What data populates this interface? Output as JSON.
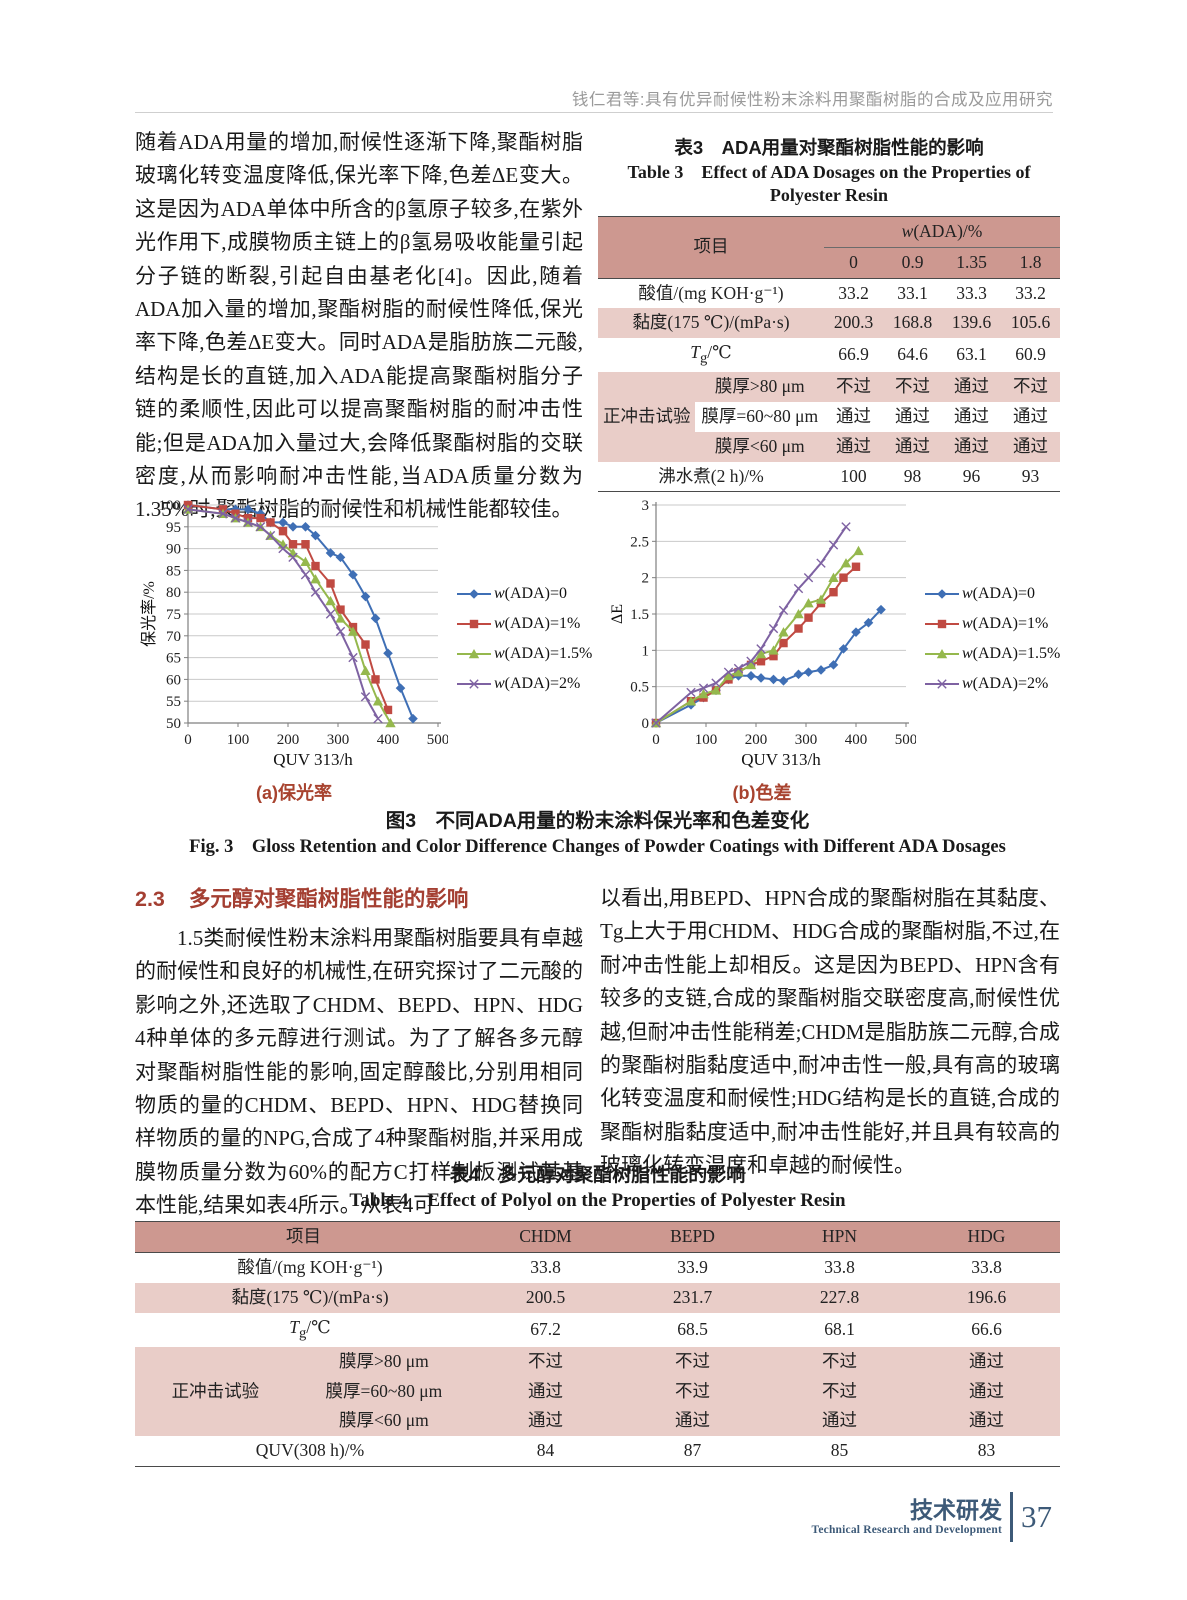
{
  "page": {
    "running_head": "钱仁君等:具有优异耐候性粉末涂料用聚酯树脂的合成及应用研究"
  },
  "intro": {
    "text": "随着ADA用量的增加,耐候性逐渐下降,聚酯树脂玻璃化转变温度降低,保光率下降,色差ΔE变大。这是因为ADA单体中所含的β氢原子较多,在紫外光作用下,成膜物质主链上的β氢易吸收能量引起分子链的断裂,引起自由基老化[4]。因此,随着ADA加入量的增加,聚酯树脂的耐候性降低,保光率下降,色差ΔE变大。同时ADA是脂肪族二元酸,结构是长的直链,加入ADA能提高聚酯树脂分子链的柔顺性,因此可以提高聚酯树脂的耐冲击性能;但是ADA加入量过大,会降低聚酯树脂的交联密度,从而影响耐冲击性能,当ADA质量分数为1.35%时,聚酯树脂的耐候性和机械性能都较佳。"
  },
  "table3": {
    "title_cn": "表3　ADA用量对聚酯树脂性能的影响",
    "title_en1": "Table 3　Effect of ADA Dosages on the Properties of",
    "title_en2": "Polyester Resin",
    "header": {
      "item": "项目",
      "group_w": "w",
      "group_rest": "(ADA)/%",
      "cols": [
        "0",
        "0.9",
        "1.35",
        "1.8"
      ]
    },
    "rows": {
      "acid": {
        "label": "酸值/(mg KOH·g⁻¹)",
        "values": [
          "33.2",
          "33.1",
          "33.3",
          "33.2"
        ]
      },
      "viscosity": {
        "label": "黏度(175 ℃)/(mPa·s)",
        "values": [
          "200.3",
          "168.8",
          "139.6",
          "105.6"
        ]
      },
      "tg": {
        "label_t": "T",
        "label_sub": "g",
        "label_rest": "/℃",
        "values": [
          "66.9",
          "64.6",
          "63.1",
          "60.9"
        ]
      },
      "impact_title": "正冲击试验",
      "impact": [
        {
          "label": "膜厚>80 μm",
          "values": [
            "不过",
            "不过",
            "通过",
            "不过"
          ]
        },
        {
          "label": "膜厚=60~80 μm",
          "values": [
            "通过",
            "通过",
            "通过",
            "通过"
          ]
        },
        {
          "label": "膜厚<60 μm",
          "values": [
            "通过",
            "通过",
            "通过",
            "通过"
          ]
        }
      ],
      "boil": {
        "label": "沸水煮(2 h)/%",
        "values": [
          "100",
          "98",
          "96",
          "93"
        ]
      }
    }
  },
  "chart_data": [
    {
      "type": "line",
      "title": "(a)保光率",
      "xlabel": "QUV 313/h",
      "ylabel": "保光率/%",
      "xlim": [
        0,
        500
      ],
      "ylim": [
        50,
        100
      ],
      "xticks": [
        "0",
        "100",
        "200",
        "300",
        "400",
        "500"
      ],
      "yticks": [
        "50",
        "55",
        "60",
        "65",
        "70",
        "75",
        "80",
        "85",
        "90",
        "95",
        "100"
      ],
      "grid": "horizontal",
      "legend_position": "right",
      "series": [
        {
          "name": "w(ADA)=0",
          "color": "#3f6fb5",
          "marker": "diamond",
          "x": [
            0,
            70,
            95,
            120,
            145,
            165,
            190,
            210,
            235,
            255,
            285,
            305,
            330,
            355,
            375,
            400,
            425,
            450
          ],
          "y": [
            100,
            99,
            99,
            99,
            98,
            96,
            96,
            95,
            95,
            93,
            89,
            88,
            84,
            79,
            74,
            66,
            58,
            51
          ]
        },
        {
          "name": "w(ADA)=1%",
          "color": "#c04a42",
          "marker": "square",
          "x": [
            0,
            70,
            95,
            120,
            145,
            165,
            190,
            210,
            235,
            255,
            285,
            305,
            330,
            355,
            375,
            400
          ],
          "y": [
            100,
            99,
            98,
            97,
            97,
            96,
            94,
            91,
            91,
            86,
            82,
            76,
            72,
            68,
            60,
            53
          ]
        },
        {
          "name": "w(ADA)=1.5%",
          "color": "#95b84d",
          "marker": "triangle",
          "x": [
            0,
            70,
            95,
            120,
            145,
            165,
            190,
            210,
            235,
            255,
            285,
            305,
            330,
            355,
            380,
            405
          ],
          "y": [
            99,
            98,
            97,
            96,
            95,
            93,
            91,
            89,
            87,
            83,
            78,
            74,
            71,
            62,
            55,
            50
          ]
        },
        {
          "name": "w(ADA)=2%",
          "color": "#7e62a2",
          "marker": "x",
          "x": [
            0,
            70,
            95,
            120,
            145,
            165,
            190,
            210,
            235,
            255,
            285,
            305,
            330,
            355,
            380
          ],
          "y": [
            99,
            98,
            97,
            96,
            95,
            93,
            90,
            88,
            84,
            80,
            75,
            71,
            65,
            56,
            51
          ]
        }
      ]
    },
    {
      "type": "line",
      "title": "(b)色差",
      "xlabel": "QUV 313/h",
      "ylabel": "ΔE",
      "xlim": [
        0,
        500
      ],
      "ylim": [
        0,
        3
      ],
      "xticks": [
        "0",
        "100",
        "200",
        "300",
        "400",
        "500"
      ],
      "yticks": [
        "0",
        "0.5",
        "1",
        "1.5",
        "2",
        "2.5",
        "3"
      ],
      "grid": "horizontal",
      "legend_position": "right",
      "series": [
        {
          "name": "w(ADA)=0",
          "color": "#3f6fb5",
          "marker": "diamond",
          "x": [
            0,
            70,
            95,
            120,
            145,
            165,
            190,
            210,
            235,
            255,
            285,
            305,
            330,
            355,
            375,
            400,
            425,
            450
          ],
          "y": [
            0,
            0.25,
            0.35,
            0.45,
            0.6,
            0.65,
            0.65,
            0.62,
            0.6,
            0.58,
            0.67,
            0.7,
            0.73,
            0.8,
            1.02,
            1.25,
            1.38,
            1.56
          ]
        },
        {
          "name": "w(ADA)=1%",
          "color": "#c04a42",
          "marker": "square",
          "x": [
            0,
            70,
            95,
            120,
            145,
            165,
            190,
            210,
            235,
            255,
            285,
            305,
            330,
            355,
            375,
            400
          ],
          "y": [
            0,
            0.3,
            0.35,
            0.45,
            0.6,
            0.7,
            0.8,
            0.85,
            0.92,
            1.1,
            1.3,
            1.45,
            1.65,
            1.8,
            2.0,
            2.15
          ]
        },
        {
          "name": "w(ADA)=1.5%",
          "color": "#95b84d",
          "marker": "triangle",
          "x": [
            0,
            70,
            95,
            120,
            145,
            165,
            190,
            210,
            235,
            255,
            285,
            305,
            330,
            355,
            380,
            405
          ],
          "y": [
            0,
            0.3,
            0.4,
            0.45,
            0.65,
            0.7,
            0.8,
            0.95,
            1.0,
            1.25,
            1.5,
            1.65,
            1.7,
            2.0,
            2.2,
            2.37
          ]
        },
        {
          "name": "w(ADA)=2%",
          "color": "#7e62a2",
          "marker": "x",
          "x": [
            0,
            70,
            95,
            120,
            145,
            165,
            190,
            210,
            235,
            255,
            285,
            305,
            330,
            355,
            380
          ],
          "y": [
            0,
            0.42,
            0.48,
            0.55,
            0.7,
            0.75,
            0.85,
            1.02,
            1.3,
            1.55,
            1.85,
            2.0,
            2.2,
            2.45,
            2.7
          ]
        }
      ]
    }
  ],
  "figure3": {
    "caption_a": "(a)保光率",
    "caption_b": "(b)色差",
    "caption_cn": "图3　不同ADA用量的粉末涂料保光率和色差变化",
    "caption_en": "Fig. 3　Gloss Retention and Color Difference Changes of Powder Coatings with Different ADA Dosages"
  },
  "section23": {
    "number": "2.3",
    "title": "多元醇对聚酯树脂性能的影响",
    "left": "1.5类耐候性粉末涂料用聚酯树脂要具有卓越的耐候性和良好的机械性,在研究探讨了二元酸的影响之外,还选取了CHDM、BEPD、HPN、HDG 4种单体的多元醇进行测试。为了了解各多元醇对聚酯树脂性能的影响,固定醇酸比,分别用相同物质的量的CHDM、BEPD、HPN、HDG替换同样物质的量的NPG,合成了4种聚酯树脂,并采用成膜物质量分数为60%的配方C打样制板测试其基本性能,结果如表4所示。从表4可",
    "right": "以看出,用BEPD、HPN合成的聚酯树脂在其黏度、Tg上大于用CHDM、HDG合成的聚酯树脂,不过,在耐冲击性能上却相反。这是因为BEPD、HPN含有较多的支链,合成的聚酯树脂交联密度高,耐候性优越,但耐冲击性能稍差;CHDM是脂肪族二元醇,合成的聚酯树脂黏度适中,耐冲击性一般,具有高的玻璃化转变温度和耐候性;HDG结构是长的直链,合成的聚酯树脂黏度适中,耐冲击性能好,并且具有较高的玻璃化转变温度和卓越的耐候性。"
  },
  "table4": {
    "title_cn": "表4　多元醇对聚酯树脂性能的影响",
    "title_en": "Table 4　Effect of Polyol on the Properties of Polyester Resin",
    "header": {
      "item": "项目",
      "cols": [
        "CHDM",
        "BEPD",
        "HPN",
        "HDG"
      ]
    },
    "rows": {
      "acid": {
        "label": "酸值/(mg KOH·g⁻¹)",
        "values": [
          "33.8",
          "33.9",
          "33.8",
          "33.8"
        ]
      },
      "viscosity": {
        "label": "黏度(175 ℃)/(mPa·s)",
        "values": [
          "200.5",
          "231.7",
          "227.8",
          "196.6"
        ]
      },
      "tg": {
        "label_t": "T",
        "label_sub": "g",
        "label_rest": "/℃",
        "values": [
          "67.2",
          "68.5",
          "68.1",
          "66.6"
        ]
      },
      "impact_title": "正冲击试验",
      "impact": [
        {
          "label": "膜厚>80 μm",
          "values": [
            "不过",
            "不过",
            "不过",
            "通过"
          ]
        },
        {
          "label": "膜厚=60~80 μm",
          "values": [
            "通过",
            "不过",
            "不过",
            "通过"
          ]
        },
        {
          "label": "膜厚<60 μm",
          "values": [
            "通过",
            "通过",
            "通过",
            "通过"
          ]
        }
      ],
      "quv": {
        "label": "QUV(308 h)/%",
        "values": [
          "84",
          "87",
          "85",
          "83"
        ]
      }
    }
  },
  "footer": {
    "label_cn": "技术研发",
    "label_en": "Technical Research and Development",
    "page_number": "37"
  }
}
